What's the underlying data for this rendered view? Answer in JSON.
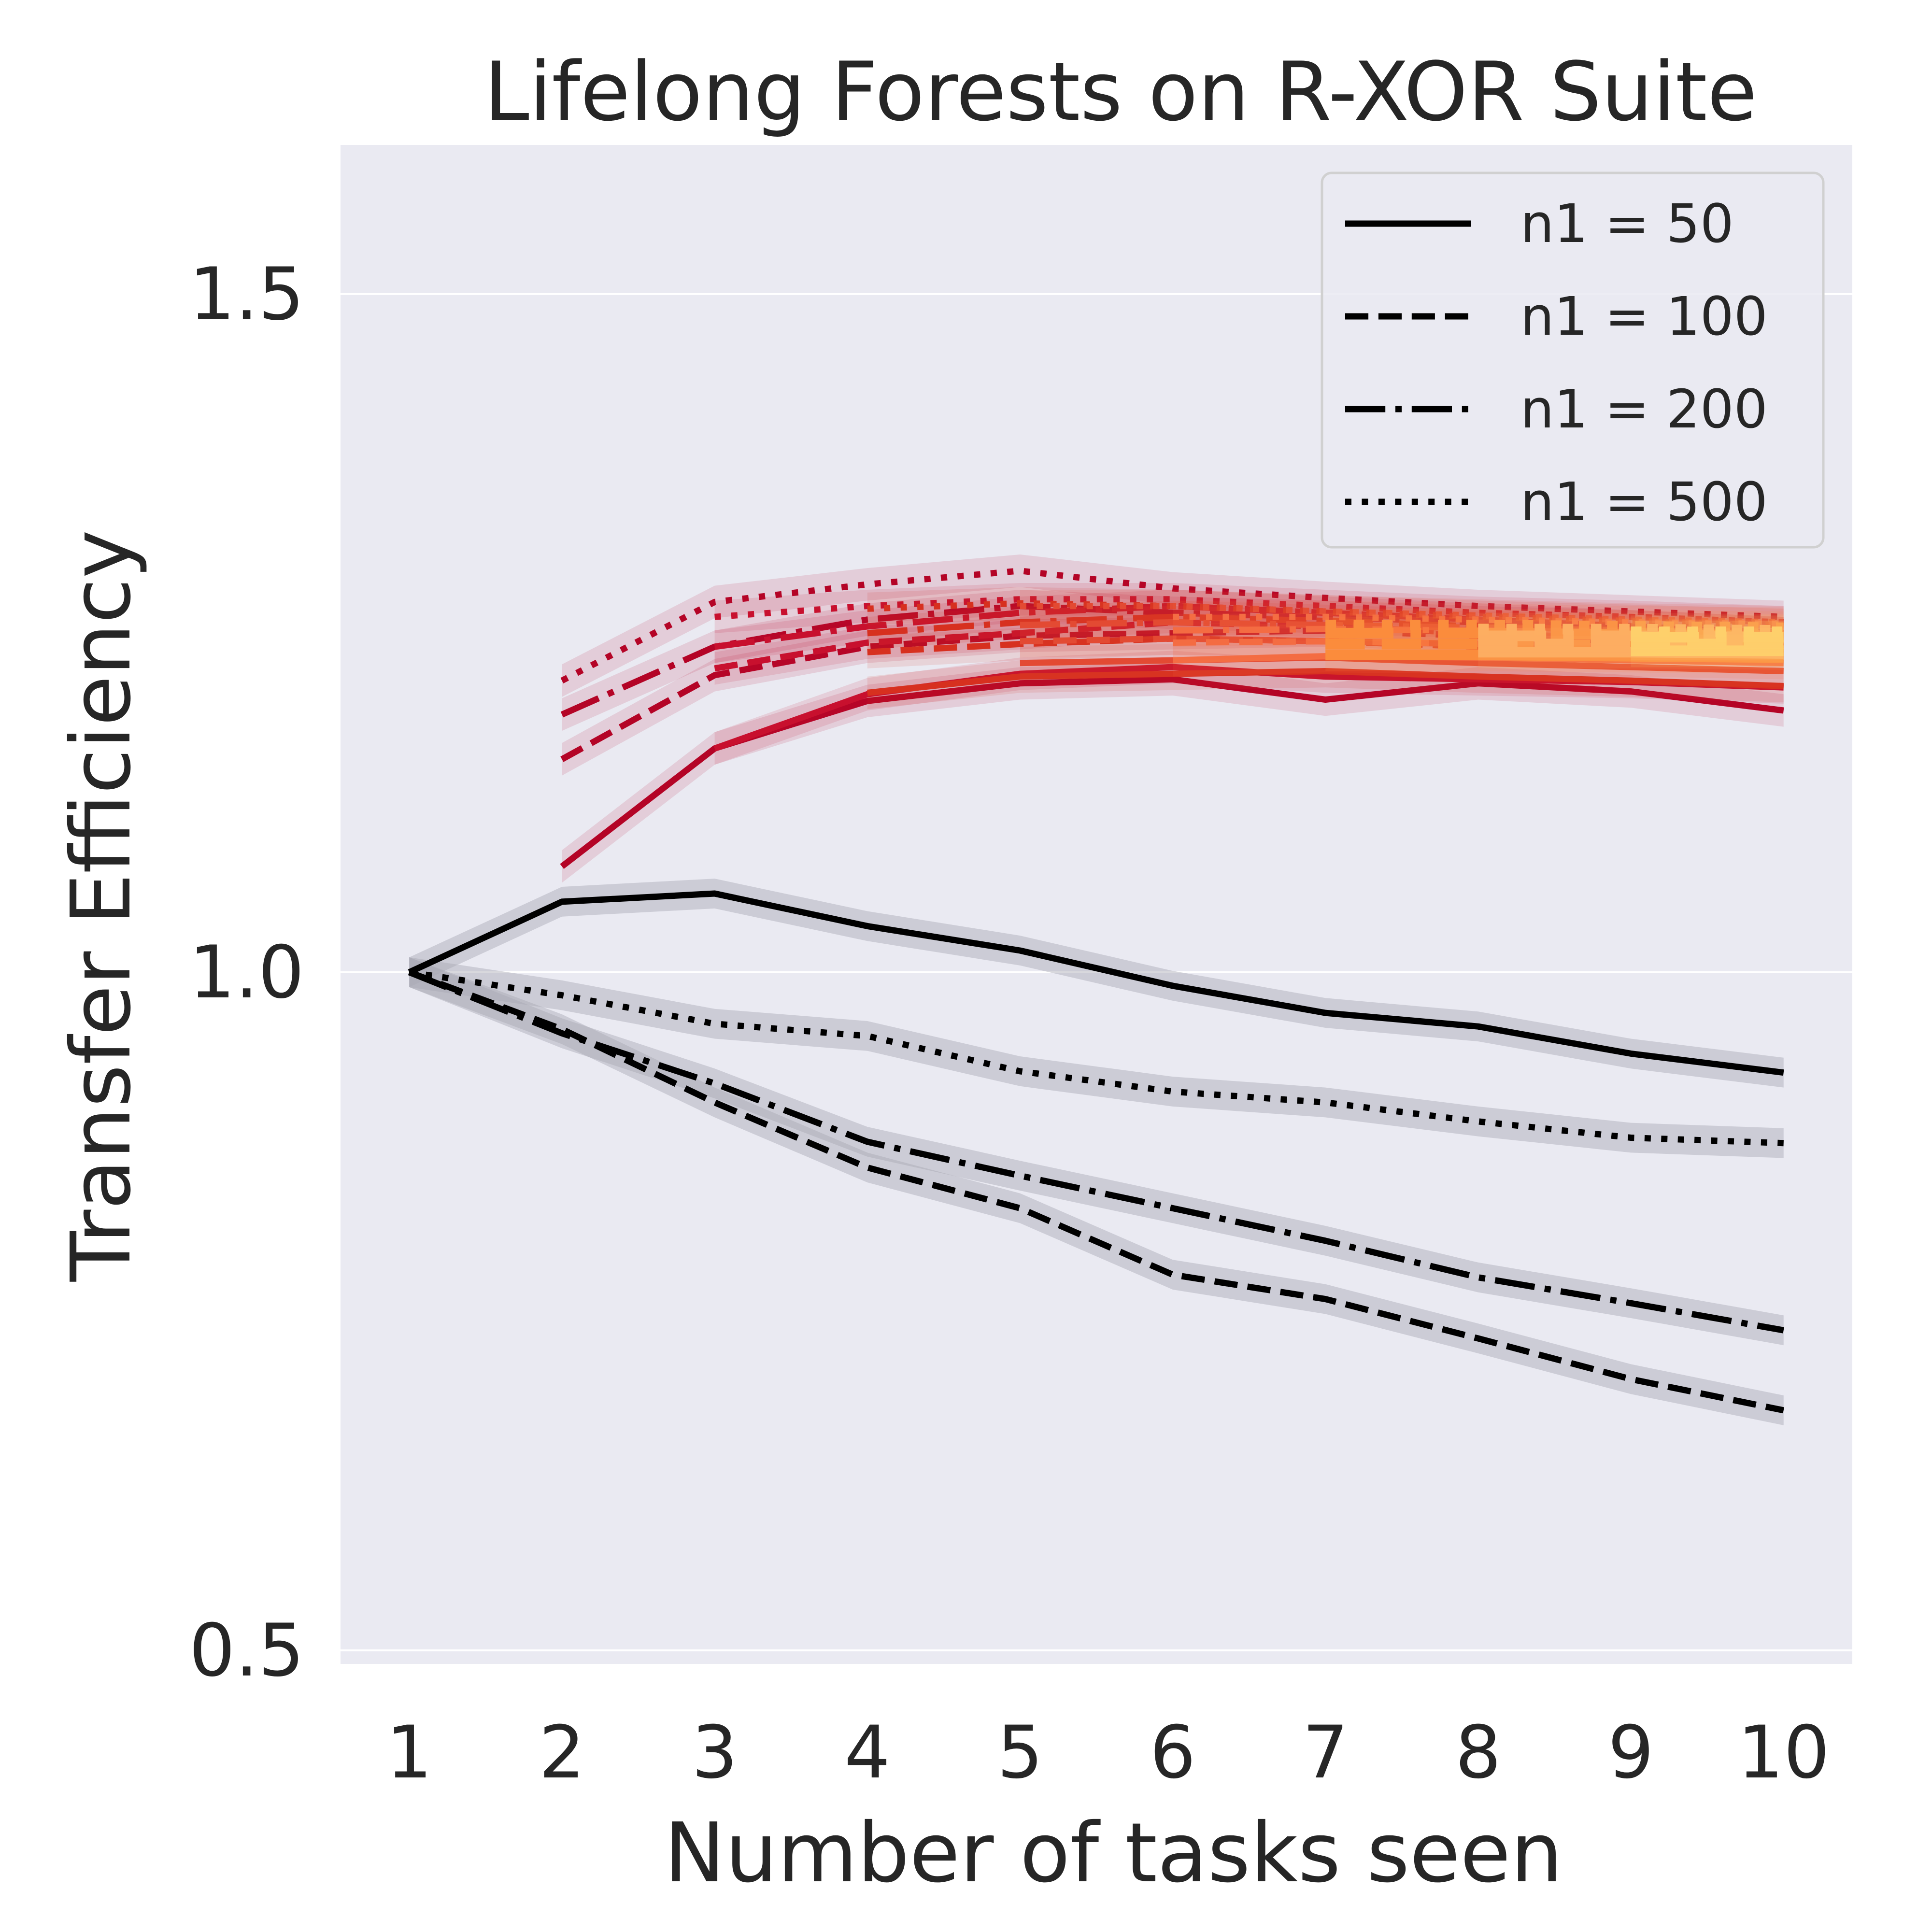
{
  "chart_data": {
    "type": "line",
    "title": "Lifelong Forests on R-XOR Suite",
    "xlabel": "Number of tasks seen",
    "ylabel": "Transfer Efficiency",
    "xlim": [
      0.55,
      10.45
    ],
    "ylim": [
      0.49,
      1.61
    ],
    "xticks": [
      "1",
      "2",
      "3",
      "4",
      "5",
      "6",
      "7",
      "8",
      "9",
      "10"
    ],
    "yticks": [
      "0.5",
      "1.0",
      "1.5"
    ],
    "ytick_values": [
      0.5,
      1.0,
      1.5
    ],
    "grid": true,
    "legend_position": "top-right",
    "background_color": "#eaeaf2",
    "colors": {
      "main_series": "#000000",
      "band": "#a9a9b3"
    },
    "legend": [
      {
        "label": "n1 = 50",
        "style": "solid"
      },
      {
        "label": "n1 = 100",
        "style": "dashed"
      },
      {
        "label": "n1 = 200",
        "style": "dashdot"
      },
      {
        "label": "n1 = 500",
        "style": "dotted"
      }
    ],
    "main_series": [
      {
        "label": "n1 = 50",
        "style": "solid",
        "x": [
          1,
          2,
          3,
          4,
          5,
          6,
          7,
          8,
          9,
          10
        ],
        "y": [
          1.0,
          1.052,
          1.058,
          1.034,
          1.016,
          0.99,
          0.97,
          0.96,
          0.94,
          0.926
        ]
      },
      {
        "label": "n1 = 100",
        "style": "dashed",
        "x": [
          1,
          2,
          3,
          4,
          5,
          6,
          7,
          8,
          9,
          10
        ],
        "y": [
          1.0,
          0.958,
          0.904,
          0.856,
          0.826,
          0.777,
          0.759,
          0.73,
          0.7,
          0.677
        ]
      },
      {
        "label": "n1 = 200",
        "style": "dashdot",
        "x": [
          1,
          2,
          3,
          4,
          5,
          6,
          7,
          8,
          9,
          10
        ],
        "y": [
          1.0,
          0.955,
          0.918,
          0.875,
          0.85,
          0.826,
          0.802,
          0.775,
          0.756,
          0.736
        ]
      },
      {
        "label": "n1 = 500",
        "style": "dotted",
        "x": [
          1,
          2,
          3,
          4,
          5,
          6,
          7,
          8,
          9,
          10
        ],
        "y": [
          1.0,
          0.983,
          0.962,
          0.953,
          0.927,
          0.912,
          0.904,
          0.89,
          0.878,
          0.874
        ]
      }
    ],
    "task_series": [
      {
        "task": 2,
        "color": "#b40426",
        "series": [
          {
            "style": "solid",
            "x": [
              2,
              3,
              4,
              5,
              6,
              7,
              8,
              9,
              10
            ],
            "y": [
              1.078,
              1.165,
              1.2,
              1.213,
              1.216,
              1.201,
              1.213,
              1.207,
              1.193
            ]
          },
          {
            "style": "dashed",
            "x": [
              2,
              3,
              4,
              5,
              6,
              7,
              8,
              9,
              10
            ],
            "y": [
              1.157,
              1.219,
              1.24,
              1.248,
              1.25,
              1.252,
              1.248,
              1.243,
              1.236
            ]
          },
          {
            "style": "dashdot",
            "x": [
              2,
              3,
              4,
              5,
              6,
              7,
              8,
              9,
              10
            ],
            "y": [
              1.19,
              1.24,
              1.26,
              1.27,
              1.265,
              1.262,
              1.258,
              1.255,
              1.25
            ]
          },
          {
            "style": "dotted",
            "x": [
              2,
              3,
              4,
              5,
              6,
              7,
              8,
              9,
              10
            ],
            "y": [
              1.215,
              1.273,
              1.286,
              1.296,
              1.283,
              1.276,
              1.27,
              1.266,
              1.262
            ]
          }
        ]
      },
      {
        "task": 3,
        "color": "#c8102e",
        "series": [
          {
            "style": "solid",
            "x": [
              3,
              4,
              5,
              6,
              7,
              8,
              9,
              10
            ],
            "y": [
              1.165,
              1.205,
              1.22,
              1.225,
              1.218,
              1.216,
              1.214,
              1.21
            ]
          },
          {
            "style": "dashed",
            "x": [
              3,
              4,
              5,
              6,
              7,
              8,
              9,
              10
            ],
            "y": [
              1.224,
              1.243,
              1.25,
              1.258,
              1.255,
              1.25,
              1.246,
              1.24
            ]
          },
          {
            "style": "dashdot",
            "x": [
              3,
              4,
              5,
              6,
              7,
              8,
              9,
              10
            ],
            "y": [
              1.24,
              1.255,
              1.265,
              1.27,
              1.265,
              1.26,
              1.255,
              1.25
            ]
          },
          {
            "style": "dotted",
            "x": [
              3,
              4,
              5,
              6,
              7,
              8,
              9,
              10
            ],
            "y": [
              1.262,
              1.27,
              1.275,
              1.275,
              1.27,
              1.265,
              1.262,
              1.258
            ]
          }
        ]
      },
      {
        "task": 4,
        "color": "#d7301f",
        "series": [
          {
            "style": "solid",
            "x": [
              4,
              5,
              6,
              7,
              8,
              9,
              10
            ],
            "y": [
              1.206,
              1.218,
              1.22,
              1.222,
              1.218,
              1.215,
              1.211
            ]
          },
          {
            "style": "dashed",
            "x": [
              4,
              5,
              6,
              7,
              8,
              9,
              10
            ],
            "y": [
              1.236,
              1.242,
              1.246,
              1.244,
              1.24,
              1.238,
              1.235
            ]
          },
          {
            "style": "dashdot",
            "x": [
              4,
              5,
              6,
              7,
              8,
              9,
              10
            ],
            "y": [
              1.25,
              1.258,
              1.262,
              1.259,
              1.255,
              1.252,
              1.248
            ]
          },
          {
            "style": "dotted",
            "x": [
              4,
              5,
              6,
              7,
              8,
              9,
              10
            ],
            "y": [
              1.268,
              1.272,
              1.27,
              1.266,
              1.262,
              1.259,
              1.256
            ]
          }
        ]
      },
      {
        "task": 5,
        "color": "#e34a33",
        "series": [
          {
            "style": "solid",
            "x": [
              5,
              6,
              7,
              8,
              9,
              10
            ],
            "y": [
              1.228,
              1.23,
              1.232,
              1.228,
              1.225,
              1.222
            ]
          },
          {
            "style": "dashed",
            "x": [
              5,
              6,
              7,
              8,
              9,
              10
            ],
            "y": [
              1.244,
              1.246,
              1.244,
              1.242,
              1.24,
              1.238
            ]
          },
          {
            "style": "dashdot",
            "x": [
              5,
              6,
              7,
              8,
              9,
              10
            ],
            "y": [
              1.256,
              1.258,
              1.256,
              1.254,
              1.252,
              1.25
            ]
          },
          {
            "style": "dotted",
            "x": [
              5,
              6,
              7,
              8,
              9,
              10
            ],
            "y": [
              1.27,
              1.27,
              1.266,
              1.263,
              1.26,
              1.258
            ]
          }
        ]
      },
      {
        "task": 6,
        "color": "#f46d43",
        "series": [
          {
            "style": "solid",
            "x": [
              6,
              7,
              8,
              9,
              10
            ],
            "y": [
              1.23,
              1.233,
              1.232,
              1.23,
              1.228
            ]
          },
          {
            "style": "dashed",
            "x": [
              6,
              7,
              8,
              9,
              10
            ],
            "y": [
              1.243,
              1.244,
              1.242,
              1.24,
              1.239
            ]
          },
          {
            "style": "dashdot",
            "x": [
              6,
              7,
              8,
              9,
              10
            ],
            "y": [
              1.252,
              1.253,
              1.252,
              1.25,
              1.249
            ]
          },
          {
            "style": "dotted",
            "x": [
              6,
              7,
              8,
              9,
              10
            ],
            "y": [
              1.262,
              1.262,
              1.26,
              1.258,
              1.257
            ]
          }
        ]
      },
      {
        "task": 7,
        "color": "#fb8d3d",
        "series": [
          {
            "style": "solid",
            "x": [
              7,
              8,
              9,
              10
            ],
            "y": [
              1.234,
              1.234,
              1.233,
              1.232
            ]
          },
          {
            "style": "dashed",
            "x": [
              7,
              8,
              9,
              10
            ],
            "y": [
              1.242,
              1.242,
              1.241,
              1.24
            ]
          },
          {
            "style": "dashdot",
            "x": [
              7,
              8,
              9,
              10
            ],
            "y": [
              1.25,
              1.25,
              1.249,
              1.248
            ]
          },
          {
            "style": "dotted",
            "x": [
              7,
              8,
              9,
              10
            ],
            "y": [
              1.256,
              1.256,
              1.255,
              1.254
            ]
          }
        ]
      },
      {
        "task": 8,
        "color": "#fdae61",
        "series": [
          {
            "style": "solid",
            "x": [
              8,
              9,
              10
            ],
            "y": [
              1.236,
              1.236,
              1.235
            ]
          },
          {
            "style": "dashed",
            "x": [
              8,
              9,
              10
            ],
            "y": [
              1.242,
              1.242,
              1.241
            ]
          },
          {
            "style": "dashdot",
            "x": [
              8,
              9,
              10
            ],
            "y": [
              1.248,
              1.248,
              1.247
            ]
          },
          {
            "style": "dotted",
            "x": [
              8,
              9,
              10
            ],
            "y": [
              1.253,
              1.253,
              1.252
            ]
          }
        ]
      },
      {
        "task": 9,
        "color": "#fed06b",
        "series": [
          {
            "style": "solid",
            "x": [
              9,
              10
            ],
            "y": [
              1.237,
              1.237
            ]
          },
          {
            "style": "dashed",
            "x": [
              9,
              10
            ],
            "y": [
              1.242,
              1.242
            ]
          },
          {
            "style": "dashdot",
            "x": [
              9,
              10
            ],
            "y": [
              1.247,
              1.247
            ]
          },
          {
            "style": "dotted",
            "x": [
              9,
              10
            ],
            "y": [
              1.251,
              1.251
            ]
          }
        ]
      }
    ]
  }
}
